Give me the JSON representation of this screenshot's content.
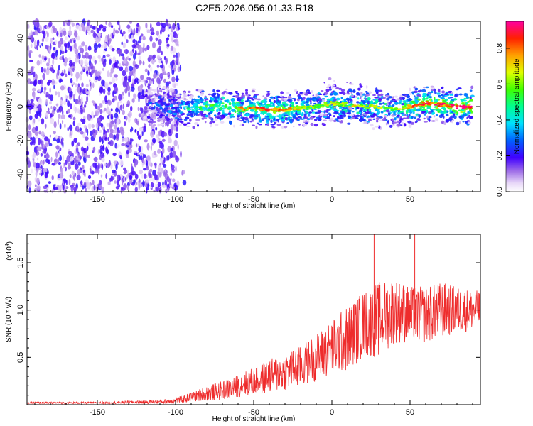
{
  "title": "C2E5.2026.056.01.33.R18",
  "chart_data": [
    {
      "type": "heatmap",
      "xlabel": "Height of straight line (km)",
      "ylabel": "Frequency (Hz)",
      "xlim": [
        -195,
        95
      ],
      "ylim": [
        -50,
        50
      ],
      "xticks": [
        -150,
        -100,
        -50,
        0,
        50
      ],
      "yticks": [
        -40,
        -20,
        0,
        20,
        40
      ],
      "colorbar": {
        "label": "Normalized spectral amplitude",
        "range": [
          0,
          0.95
        ],
        "ticks": [
          "0.0",
          "0.2",
          "0.4",
          "0.6",
          "0.8"
        ],
        "tick_values": [
          0,
          0.2,
          0.4,
          0.6,
          0.8
        ],
        "colormap": "rainbow (white → purple → blue → cyan → green → yellow → red → magenta)"
      },
      "noise_region": {
        "x": [
          -195,
          -98
        ],
        "amplitude": 0.12
      },
      "signal_ridge": {
        "x": [
          -120,
          -105,
          -95,
          -85,
          -75,
          -60,
          -50,
          -40,
          -30,
          -20,
          -10,
          0,
          10,
          20,
          30,
          40,
          50,
          60,
          70,
          80,
          90
        ],
        "frequency_center": [
          1,
          0,
          -2,
          0,
          0,
          -1,
          -1,
          -2,
          -2,
          -1,
          0,
          2,
          1,
          0,
          0,
          -2,
          0,
          2,
          1,
          0,
          0
        ],
        "amplitude": [
          0.2,
          0.3,
          0.4,
          0.5,
          0.55,
          0.6,
          0.6,
          0.65,
          0.6,
          0.5,
          0.4,
          0.5,
          0.45,
          0.5,
          0.45,
          0.4,
          0.6,
          0.7,
          0.7,
          0.75,
          0.75
        ]
      }
    },
    {
      "type": "line",
      "xlabel": "Height of straight line (km)",
      "ylabel": "SNR (10 * v/v)",
      "yscale_label": "(x10",
      "yscale_exponent": "4",
      "xlim": [
        -195,
        95
      ],
      "ylim": [
        0,
        1.8
      ],
      "xticks": [
        -150,
        -100,
        -50,
        0,
        50
      ],
      "yticks": [
        0.5,
        1.0,
        1.5
      ],
      "ytick_labels": [
        "0.5",
        "1.0",
        "1.5"
      ],
      "color": "#ee2c2c",
      "series": [
        {
          "x": [
            -195,
            -150,
            -110,
            -100,
            -90,
            -80,
            -70,
            -60,
            -50,
            -40,
            -30,
            -20,
            -10,
            0,
            10,
            20,
            30,
            40,
            50,
            60,
            70,
            80,
            95
          ],
          "values": [
            0.02,
            0.02,
            0.03,
            0.04,
            0.08,
            0.12,
            0.15,
            0.2,
            0.25,
            0.3,
            0.35,
            0.4,
            0.5,
            0.6,
            0.7,
            0.85,
            0.9,
            1.0,
            0.95,
            0.95,
            1.0,
            1.0,
            1.0
          ],
          "noise": [
            0.01,
            0.01,
            0.02,
            0.03,
            0.05,
            0.08,
            0.1,
            0.12,
            0.15,
            0.18,
            0.2,
            0.22,
            0.25,
            0.3,
            0.35,
            0.35,
            0.4,
            0.35,
            0.3,
            0.3,
            0.3,
            0.25,
            0.2
          ]
        }
      ],
      "spikes": [
        {
          "x": 27,
          "value": 1.8
        },
        {
          "x": 53,
          "value": 1.8
        }
      ]
    }
  ]
}
